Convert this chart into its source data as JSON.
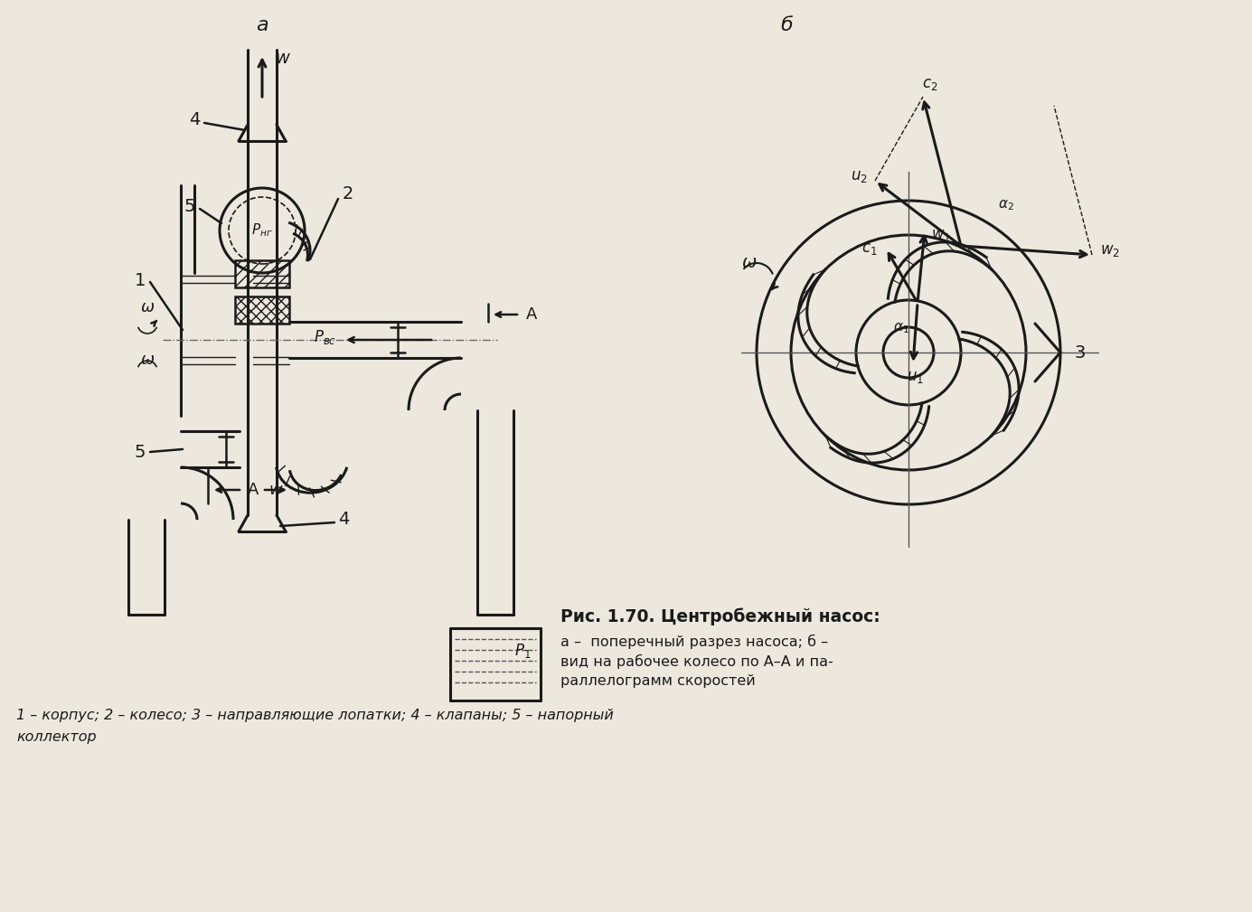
{
  "bg_color": "#ede8de",
  "line_color": "#1a1a1a",
  "caption_title": "Рис. 1.70. Центробежный насос:",
  "caption_line1": "а –  поперечный разрез насоса; б –",
  "caption_line2": "вид на рабочее колесо по А–А и па-",
  "caption_line3": "раллелограмм скоростей",
  "caption_bottom": "1 – корпус; 2 – колесо; 3 – направляющие лопатки; 4 – клапаны; 5 – напорный",
  "caption_bottom2": "коллектор"
}
